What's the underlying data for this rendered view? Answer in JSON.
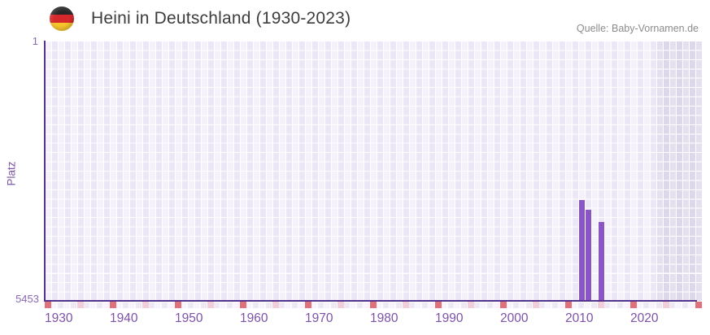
{
  "header": {
    "title": "Heini in Deutschland (1930-2023)",
    "source": "Quelle: Baby-Vornamen.de",
    "flag_icon": "german-flag-icon",
    "flag_colors": [
      "#262626",
      "#d5282c",
      "#f6c52e"
    ]
  },
  "chart_data": {
    "type": "bar",
    "title": "Heini in Deutschland (1930-2023)",
    "xlabel": "",
    "ylabel": "Platz",
    "y_axis": {
      "top_tick_label": "1",
      "bottom_tick_label": "5453",
      "min": 1,
      "max": 5453,
      "inverted": true
    },
    "x_axis": {
      "range": [
        1930,
        2023
      ],
      "tick_labels": [
        "1930",
        "1940",
        "1950",
        "1960",
        "1970",
        "1980",
        "1990",
        "2000",
        "2010",
        "2020"
      ],
      "decade_marks": [
        1930,
        1940,
        1950,
        1960,
        1970,
        1980,
        1990,
        2000,
        2010,
        2020,
        2030
      ],
      "half_decade_marks": [
        1935,
        1945,
        1955,
        1965,
        1975,
        1985,
        1995,
        2005,
        2015,
        2025
      ]
    },
    "series": [
      {
        "name": "Platz",
        "points": [
          {
            "year": 2012,
            "rank": 3335
          },
          {
            "year": 2013,
            "rank": 3550
          },
          {
            "year": 2015,
            "rank": 3805
          }
        ]
      }
    ],
    "legend": "none",
    "grid": "on",
    "colors": {
      "bar": "#8b56c4",
      "axis_line": "#53348c",
      "x_tick_text": "#7d52a8",
      "y_tick_text": "#8a68b5",
      "decade_mark": "#e0707b",
      "half_decade_mark": "#f3ced8",
      "plot_bg_light": "#f4f1fb",
      "plot_bg_alt": "#ebe7f6",
      "future_band_light": "#e4e0f0",
      "future_band_alt": "#dcd8ea"
    }
  }
}
